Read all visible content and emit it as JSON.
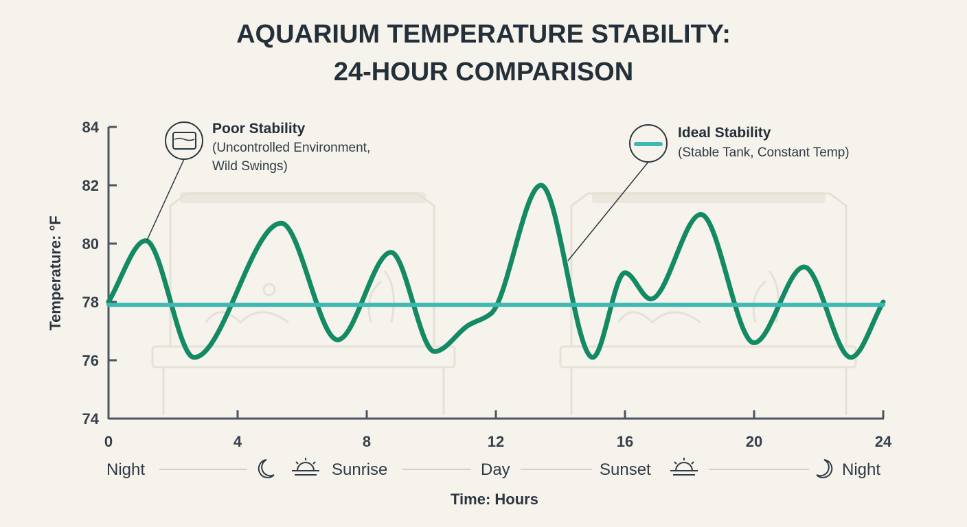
{
  "chart_data": {
    "type": "line",
    "title_lines": [
      "AQUARIUM TEMPERATURE STABILITY:",
      "24-HOUR COMPARISON"
    ],
    "xlabel": "Time: Hours",
    "ylabel": "Temperature: °F",
    "xlim": [
      0,
      24
    ],
    "ylim": [
      74,
      84
    ],
    "x_ticks": [
      "0",
      "4",
      "8",
      "12",
      "16",
      "20",
      "24"
    ],
    "y_ticks": [
      "74",
      "76",
      "78",
      "80",
      "82",
      "84"
    ],
    "grid": false,
    "series": [
      {
        "name": "Poor Stability",
        "note": "(Uncontrolled Environment, Wild Swings)",
        "color": "#138a63",
        "x": [
          0,
          1.15,
          2.65,
          5.35,
          7.1,
          8.75,
          10.1,
          11.15,
          11.85,
          13.4,
          15.0,
          16.0,
          16.8,
          18.35,
          20.0,
          21.55,
          23.0,
          24
        ],
        "y": [
          78,
          80.1,
          76.1,
          80.7,
          76.7,
          79.7,
          76.3,
          77.2,
          77.6,
          82.0,
          76.1,
          79.0,
          78.1,
          81.0,
          76.6,
          79.2,
          76.1,
          78
        ]
      },
      {
        "name": "Ideal Stability",
        "note": "(Stable Tank, Constant Temp)",
        "color": "#3fb8b1",
        "x": [
          0,
          24
        ],
        "y": [
          77.9,
          77.9
        ]
      }
    ],
    "time_periods": [
      "Night",
      "Sunrise",
      "Day",
      "Sunset",
      "Night"
    ]
  },
  "icons": {
    "poor_icon": "tank-icon",
    "ideal_icon": "flat-line-icon",
    "moon": "moon-icon",
    "sun": "sun-icon"
  },
  "colors": {
    "background": "#f6f3ec",
    "axis": "#4a5560",
    "poor_line": "#138a63",
    "ideal_line": "#3fb8b1"
  }
}
